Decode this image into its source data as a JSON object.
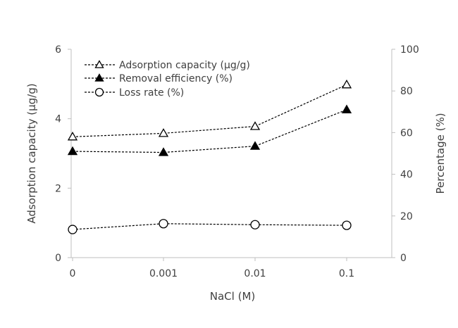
{
  "chart_data": {
    "type": "line",
    "title": "",
    "categories": [
      "0",
      "0.001",
      "0.01",
      "0.1"
    ],
    "xlabel": "NaCl (M)",
    "ylabel_left": "Adsorption capacity (μg/g)",
    "ylabel_right": "Percentage (%)",
    "ylim_left": [
      0,
      6
    ],
    "ylim_right": [
      0,
      100
    ],
    "yticks_left": [
      "0",
      "2",
      "4",
      "6"
    ],
    "yticks_right": [
      "0",
      "20",
      "40",
      "60",
      "80",
      "100"
    ],
    "grid": false,
    "legend_position": "top-left",
    "series": [
      {
        "name": "Adsorption capacity (μg/g)",
        "axis": "left",
        "marker": "triangle-open",
        "line": "dashed",
        "values": [
          3.48,
          3.58,
          3.78,
          4.98
        ]
      },
      {
        "name": "Removal efficiency (%)",
        "axis": "right",
        "marker": "triangle-filled",
        "line": "dashed",
        "values": [
          51,
          50.5,
          53.5,
          71
        ]
      },
      {
        "name": "Loss rate (%)",
        "axis": "right",
        "marker": "circle-open",
        "line": "dashed",
        "values": [
          13.5,
          16.3,
          15.8,
          15.5
        ]
      }
    ]
  },
  "colors": {
    "axis": "#bfbfbf",
    "series": "#000000",
    "text": "#404040"
  }
}
